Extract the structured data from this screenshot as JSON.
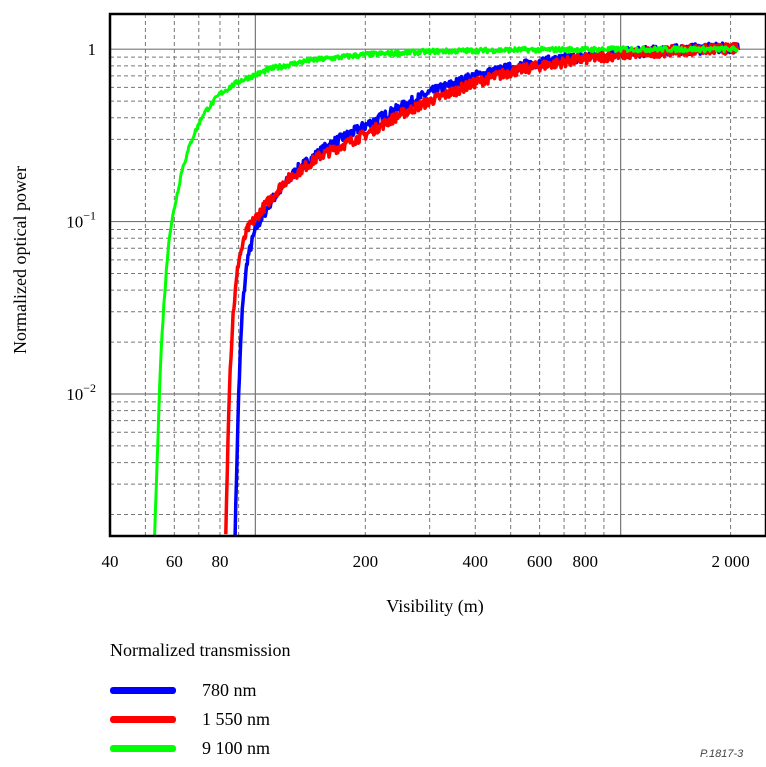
{
  "chart_data": {
    "type": "line",
    "title": "",
    "xlabel": "Visibility (m)",
    "ylabel": "Normalized optical power",
    "x_scale": "log",
    "y_scale": "log",
    "xlim": [
      40,
      2500
    ],
    "ylim": [
      0.0015,
      1.6
    ],
    "x_ticks": [
      {
        "value": 40,
        "label": "40"
      },
      {
        "value": 60,
        "label": "60"
      },
      {
        "value": 80,
        "label": "80"
      },
      {
        "value": 200,
        "label": "200"
      },
      {
        "value": 400,
        "label": "400"
      },
      {
        "value": 600,
        "label": "600"
      },
      {
        "value": 800,
        "label": "800"
      },
      {
        "value": 2000,
        "label": "2 000"
      }
    ],
    "y_ticks": [
      {
        "value": 1,
        "label": "1",
        "exp": ""
      },
      {
        "value": 0.1,
        "label": "10",
        "exp": "−1"
      },
      {
        "value": 0.01,
        "label": "10",
        "exp": "−2"
      }
    ],
    "grid": true,
    "legend": {
      "title": "Normalized transmission",
      "position": "bottom-left"
    },
    "series": [
      {
        "name": "780 nm",
        "color": "#0000ff",
        "points": [
          [
            88,
            0.0015
          ],
          [
            89,
            0.004
          ],
          [
            90,
            0.01
          ],
          [
            92,
            0.03
          ],
          [
            95,
            0.06
          ],
          [
            100,
            0.09
          ],
          [
            110,
            0.13
          ],
          [
            130,
            0.2
          ],
          [
            160,
            0.28
          ],
          [
            200,
            0.36
          ],
          [
            250,
            0.46
          ],
          [
            300,
            0.56
          ],
          [
            400,
            0.7
          ],
          [
            500,
            0.78
          ],
          [
            600,
            0.84
          ],
          [
            800,
            0.91
          ],
          [
            1000,
            0.95
          ],
          [
            1500,
            1.0
          ],
          [
            2100,
            1.02
          ]
        ]
      },
      {
        "name": "1 550 nm",
        "color": "#ff0000",
        "points": [
          [
            83,
            0.0015
          ],
          [
            84,
            0.005
          ],
          [
            85,
            0.012
          ],
          [
            87,
            0.03
          ],
          [
            90,
            0.06
          ],
          [
            95,
            0.09
          ],
          [
            105,
            0.12
          ],
          [
            120,
            0.17
          ],
          [
            150,
            0.24
          ],
          [
            200,
            0.32
          ],
          [
            250,
            0.42
          ],
          [
            300,
            0.5
          ],
          [
            400,
            0.64
          ],
          [
            500,
            0.74
          ],
          [
            600,
            0.8
          ],
          [
            800,
            0.88
          ],
          [
            1000,
            0.93
          ],
          [
            1500,
            0.99
          ],
          [
            2100,
            1.01
          ]
        ]
      },
      {
        "name": "9 100 nm",
        "color": "#00ff00",
        "points": [
          [
            53,
            0.0015
          ],
          [
            54,
            0.005
          ],
          [
            55,
            0.015
          ],
          [
            56,
            0.03
          ],
          [
            57,
            0.05
          ],
          [
            58,
            0.08
          ],
          [
            60,
            0.12
          ],
          [
            63,
            0.2
          ],
          [
            67,
            0.3
          ],
          [
            72,
            0.42
          ],
          [
            80,
            0.55
          ],
          [
            90,
            0.65
          ],
          [
            110,
            0.77
          ],
          [
            140,
            0.86
          ],
          [
            200,
            0.93
          ],
          [
            300,
            0.97
          ],
          [
            500,
            0.99
          ],
          [
            1000,
            1.0
          ],
          [
            2100,
            1.0
          ]
        ]
      }
    ]
  },
  "figure_id": "P.1817-3"
}
